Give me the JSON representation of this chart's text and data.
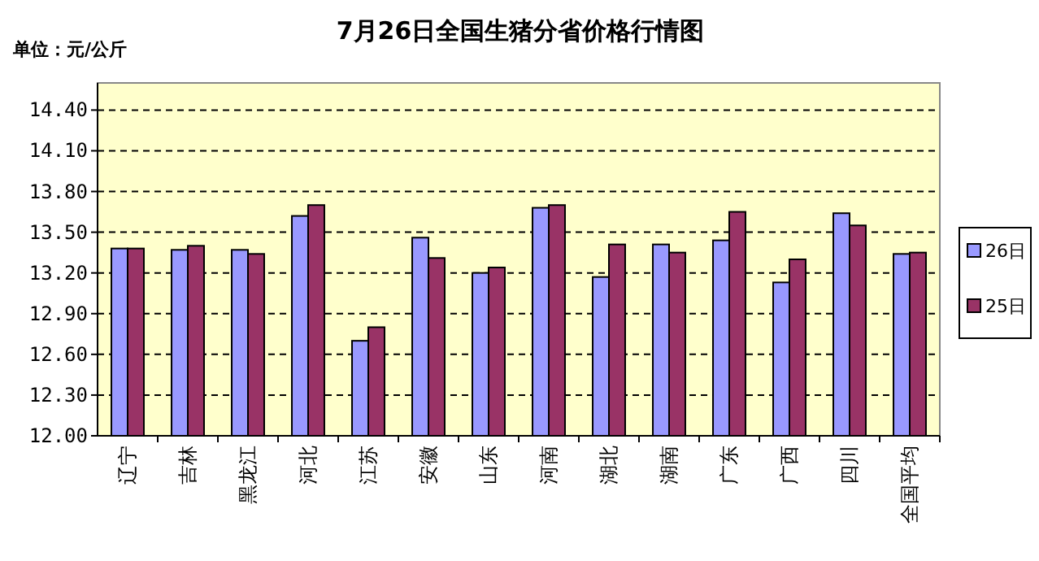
{
  "chart_data": {
    "type": "bar",
    "title": "7月26日全国生猪分省价格行情图",
    "ylabel": "单位：元/公斤",
    "categories": [
      "辽宁",
      "吉林",
      "黑龙江",
      "河北",
      "江苏",
      "安徽",
      "山东",
      "河南",
      "湖北",
      "湖南",
      "广东",
      "广西",
      "四川",
      "全国平均"
    ],
    "series": [
      {
        "name": "26日",
        "color": "#9999ff",
        "values": [
          13.38,
          13.37,
          13.37,
          13.62,
          12.7,
          13.46,
          13.2,
          13.68,
          13.17,
          13.41,
          13.44,
          13.13,
          13.64,
          13.34
        ]
      },
      {
        "name": "25日",
        "color": "#993366",
        "values": [
          13.38,
          13.4,
          13.34,
          13.7,
          12.8,
          13.31,
          13.24,
          13.7,
          13.41,
          13.35,
          13.65,
          13.3,
          13.55,
          13.35
        ]
      }
    ],
    "ylim": [
      12.0,
      14.6
    ],
    "yticks": [
      {
        "value": 12.0,
        "label": "12.00"
      },
      {
        "value": 12.3,
        "label": "12.30"
      },
      {
        "value": 12.6,
        "label": "12.60"
      },
      {
        "value": 12.9,
        "label": "12.90"
      },
      {
        "value": 13.2,
        "label": "13.20"
      },
      {
        "value": 13.5,
        "label": "13.50"
      },
      {
        "value": 13.8,
        "label": "13.80"
      },
      {
        "value": 14.1,
        "label": "14.10"
      },
      {
        "value": 14.4,
        "label": "14.40"
      }
    ],
    "grid": "y",
    "legend": "right"
  }
}
